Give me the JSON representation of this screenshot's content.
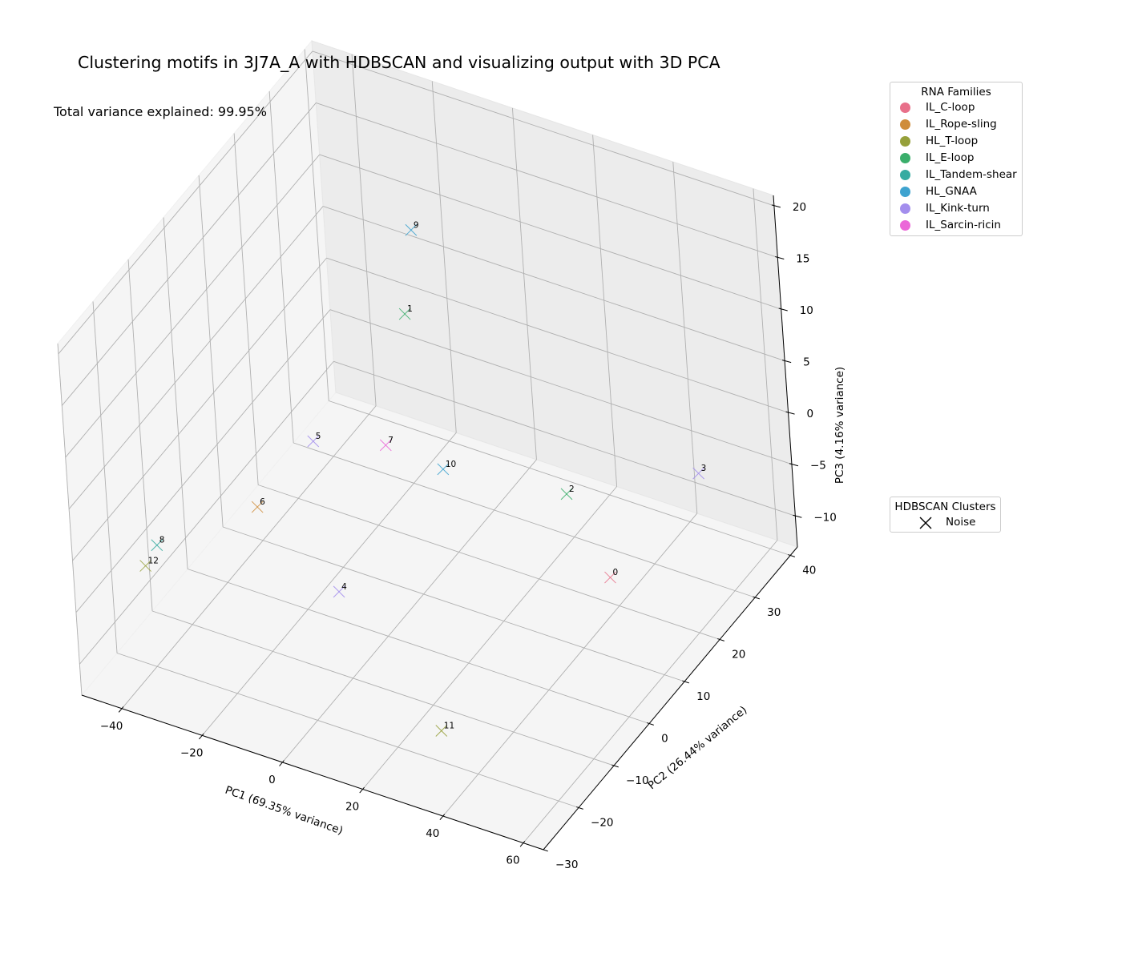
{
  "title": "Clustering motifs in 3J7A_A with HDBSCAN and visualizing output with 3D PCA",
  "variance_text": "Total variance explained: 99.95%",
  "legend_families": {
    "title": "RNA Families",
    "items": [
      {
        "label": "IL_C-loop",
        "color": "#e8708a"
      },
      {
        "label": "IL_Rope-sling",
        "color": "#cf8d3a"
      },
      {
        "label": "HL_T-loop",
        "color": "#96a03a"
      },
      {
        "label": "IL_E-loop",
        "color": "#3aae6b"
      },
      {
        "label": "IL_Tandem-shear",
        "color": "#36aba1"
      },
      {
        "label": "HL_GNAA",
        "color": "#3ea3cf"
      },
      {
        "label": "IL_Kink-turn",
        "color": "#a38eed"
      },
      {
        "label": "IL_Sarcin-ricin",
        "color": "#eb67d8"
      }
    ]
  },
  "legend_clusters": {
    "title": "HDBSCAN Clusters",
    "items": [
      {
        "label": "Noise",
        "marker": "x",
        "color": "#000000"
      }
    ]
  },
  "chart_data": {
    "type": "scatter",
    "projection": "3d",
    "title": "Clustering motifs in 3J7A_A with HDBSCAN and visualizing output with 3D PCA",
    "xlabel": "PC1 (69.35% variance)",
    "ylabel": "PC2 (26.44% variance)",
    "zlabel": "PC3 (4.16% variance)",
    "xlim": [
      -50,
      65
    ],
    "ylim": [
      -30,
      42
    ],
    "zlim": [
      -13,
      21
    ],
    "xticks": [
      -40,
      -20,
      0,
      20,
      40,
      60
    ],
    "yticks": [
      -30,
      -20,
      -10,
      0,
      10,
      20,
      30,
      40
    ],
    "zticks": [
      -10,
      -5,
      0,
      5,
      10,
      15,
      20
    ],
    "grid": true,
    "marker": "x",
    "points": [
      {
        "label": "0",
        "family": "IL_C-loop",
        "cluster": "Noise",
        "x": 43.8,
        "y": 14.2,
        "z": -7.4
      },
      {
        "label": "1",
        "family": "IL_E-loop",
        "cluster": "Noise",
        "x": -17.8,
        "y": 28.4,
        "z": 4.3
      },
      {
        "label": "2",
        "family": "IL_E-loop",
        "cluster": "Noise",
        "x": 27.9,
        "y": 20.6,
        "z": -4.0
      },
      {
        "label": "3",
        "family": "IL_Kink-turn",
        "cluster": "Noise",
        "x": 51.1,
        "y": 31.7,
        "z": -3.5
      },
      {
        "label": "4",
        "family": "IL_Kink-turn",
        "cluster": "Noise",
        "x": -11.0,
        "y": -0.8,
        "z": -9.8
      },
      {
        "label": "5",
        "family": "IL_Kink-turn",
        "cluster": "Noise",
        "x": -32.0,
        "y": 16.7,
        "z": -5.1
      },
      {
        "label": "6",
        "family": "IL_Rope-sling",
        "cluster": "Noise",
        "x": -35.6,
        "y": 4.6,
        "z": -7.0
      },
      {
        "label": "7",
        "family": "IL_Sarcin-ricin",
        "cluster": "Noise",
        "x": -20.0,
        "y": 23.3,
        "z": -6.6
      },
      {
        "label": "8",
        "family": "IL_Tandem-shear",
        "cluster": "Noise",
        "x": -46.9,
        "y": -10.8,
        "z": -5.9
      },
      {
        "label": "9",
        "family": "HL_GNAA",
        "cluster": "Noise",
        "x": -16.6,
        "y": 30.3,
        "z": 11.8
      },
      {
        "label": "10",
        "family": "HL_GNAA",
        "cluster": "Noise",
        "x": -2.0,
        "y": 19.4,
        "z": -5.0
      },
      {
        "label": "11",
        "family": "HL_T-loop",
        "cluster": "Noise",
        "x": 29.6,
        "y": -18.2,
        "z": -10.9
      },
      {
        "label": "12",
        "family": "HL_T-loop",
        "cluster": "Noise",
        "x": -45.0,
        "y": -16.1,
        "z": -5.5
      }
    ]
  }
}
